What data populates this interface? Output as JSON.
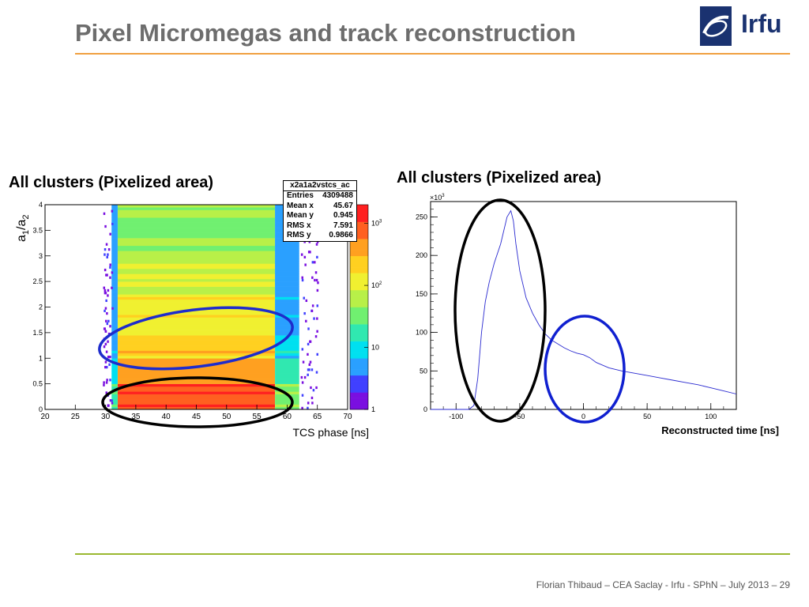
{
  "slide": {
    "title": "Pixel Micromegas and track reconstruction",
    "logo_text": "Irfu",
    "footer": "Florian Thibaud  –  CEA Saclay - Irfu - SPhN  –  July 2013 – 29",
    "colors": {
      "title": "#6d6d6d",
      "top_rule": "#f0a040",
      "bottom_rule": "#9ab830",
      "logo": "#1a3270"
    }
  },
  "left_panel": {
    "heading": "All clusters (Pixelized area)"
  },
  "right_panel": {
    "heading": "All clusters (Pixelized area)"
  },
  "chart_data": [
    {
      "type": "heatmap",
      "title": "",
      "xlabel": "TCS phase [ns]",
      "ylabel_main": "a",
      "ylabel_sub1": "1",
      "ylabel_slash": "/a",
      "ylabel_sub2": "2",
      "xlim": [
        20,
        70
      ],
      "ylim": [
        0,
        4
      ],
      "x_ticks": [
        "20",
        "25",
        "30",
        "35",
        "40",
        "45",
        "50",
        "55",
        "60",
        "65",
        "70"
      ],
      "y_ticks": [
        "0",
        "0.5",
        "1",
        "1.5",
        "2",
        "2.5",
        "3",
        "3.5",
        "4"
      ],
      "z_scale": "log",
      "z_ticks": [
        {
          "base": "1",
          "exp": ""
        },
        {
          "base": "10",
          "exp": ""
        },
        {
          "base": "10",
          "exp": "2"
        },
        {
          "base": "10",
          "exp": "3"
        }
      ],
      "stats_box": {
        "name": "x2a1a2vstcs_ac",
        "rows": [
          {
            "label": "Entries",
            "value": "4309488"
          },
          {
            "label": "Mean x",
            "value": "45.67"
          },
          {
            "label": "Mean y",
            "value": "0.945"
          },
          {
            "label": "RMS x",
            "value": "7.591"
          },
          {
            "label": "RMS y",
            "value": "0.9866"
          }
        ]
      },
      "core_x_range": [
        32,
        58
      ],
      "edge_x_range": [
        31,
        62
      ],
      "outlier_x_range": [
        29.5,
        65
      ],
      "annotations": [
        {
          "shape": "ellipse",
          "color": "#1e2ccc",
          "center": [
            45,
            1.2
          ],
          "note": "blue highlight"
        },
        {
          "shape": "ellipse",
          "color": "#000000",
          "center": [
            45,
            0.15
          ],
          "note": "black highlight"
        }
      ]
    },
    {
      "type": "line",
      "title": "",
      "xlabel": "Reconstructed time [ns]",
      "ylabel": "",
      "y_multiplier": "10",
      "y_multiplier_exp": "3",
      "xlim": [
        -120,
        120
      ],
      "ylim": [
        0,
        270
      ],
      "x_ticks": [
        "-100",
        "-50",
        "0",
        "50",
        "100"
      ],
      "y_ticks": [
        "0",
        "50",
        "100",
        "150",
        "200",
        "250"
      ],
      "line_color": "#2a2ad0",
      "series": [
        {
          "x": [
            -120,
            -90,
            -86,
            -83,
            -80,
            -77,
            -74,
            -70,
            -65,
            -60,
            -57,
            -55,
            -53,
            -50,
            -45,
            -40,
            -35,
            -30,
            -25,
            -20,
            -15,
            -10,
            -5,
            0,
            5,
            10,
            20,
            30,
            40,
            50,
            60,
            70,
            80,
            90,
            100,
            110,
            120
          ],
          "values": [
            0,
            0,
            5,
            40,
            100,
            140,
            165,
            190,
            215,
            250,
            258,
            245,
            215,
            180,
            145,
            125,
            110,
            98,
            90,
            85,
            80,
            76,
            73,
            71,
            67,
            61,
            54,
            50,
            47,
            44,
            41,
            38,
            35,
            32,
            28,
            24,
            20
          ]
        }
      ],
      "annotations": [
        {
          "shape": "ellipse",
          "color": "#000000",
          "center": [
            -60,
            145
          ],
          "note": "black highlight"
        },
        {
          "shape": "ellipse",
          "color": "#1020d0",
          "center": [
            1,
            55
          ],
          "note": "blue highlight"
        }
      ]
    }
  ]
}
